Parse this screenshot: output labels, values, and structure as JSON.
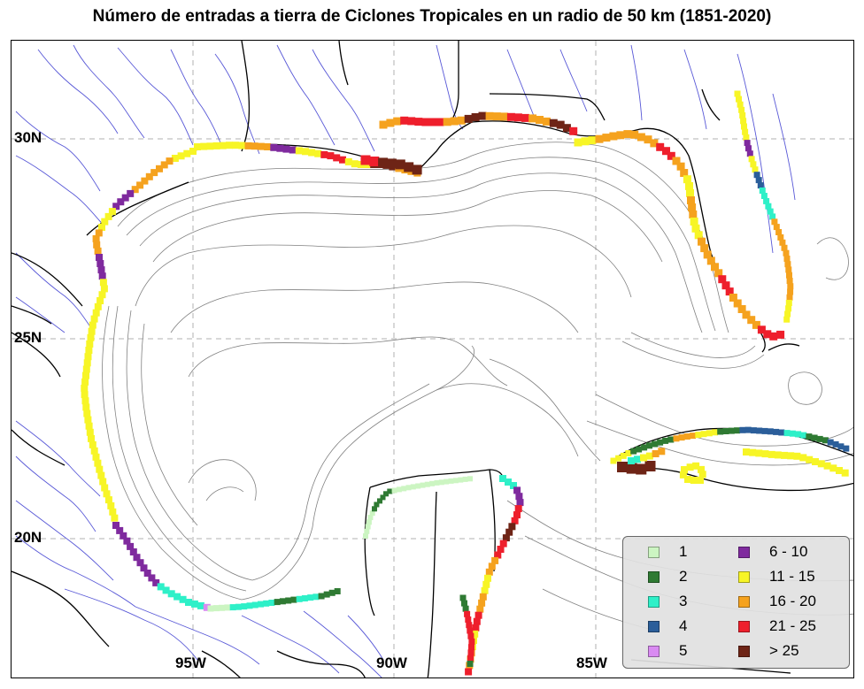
{
  "title": "Número de entradas a tierra de Ciclones Tropicales en un radio de 50 km (1851-2020)",
  "latitude_labels": [
    "30N",
    "25N",
    "20N"
  ],
  "longitude_labels": [
    "95W",
    "90W",
    "85W"
  ],
  "legend": [
    {
      "label": "1",
      "color": "#ccf5c2"
    },
    {
      "label": "2",
      "color": "#2f7a33"
    },
    {
      "label": "3",
      "color": "#2ef0c8"
    },
    {
      "label": "4",
      "color": "#2b5e9a"
    },
    {
      "label": "5",
      "color": "#d98af2"
    },
    {
      "label": "6 - 10",
      "color": "#7f2a9e"
    },
    {
      "label": "11 - 15",
      "color": "#f7f526"
    },
    {
      "label": "16 - 20",
      "color": "#f5a21e"
    },
    {
      "label": "21 - 25",
      "color": "#ee1f2c"
    },
    {
      "label": "> 25",
      "color": "#6e2416"
    }
  ],
  "colors": {
    "rivers": "#3b3bd0",
    "bathymetry": "#808080",
    "coastline": "#000000",
    "gridline": "#b0b0b0"
  }
}
